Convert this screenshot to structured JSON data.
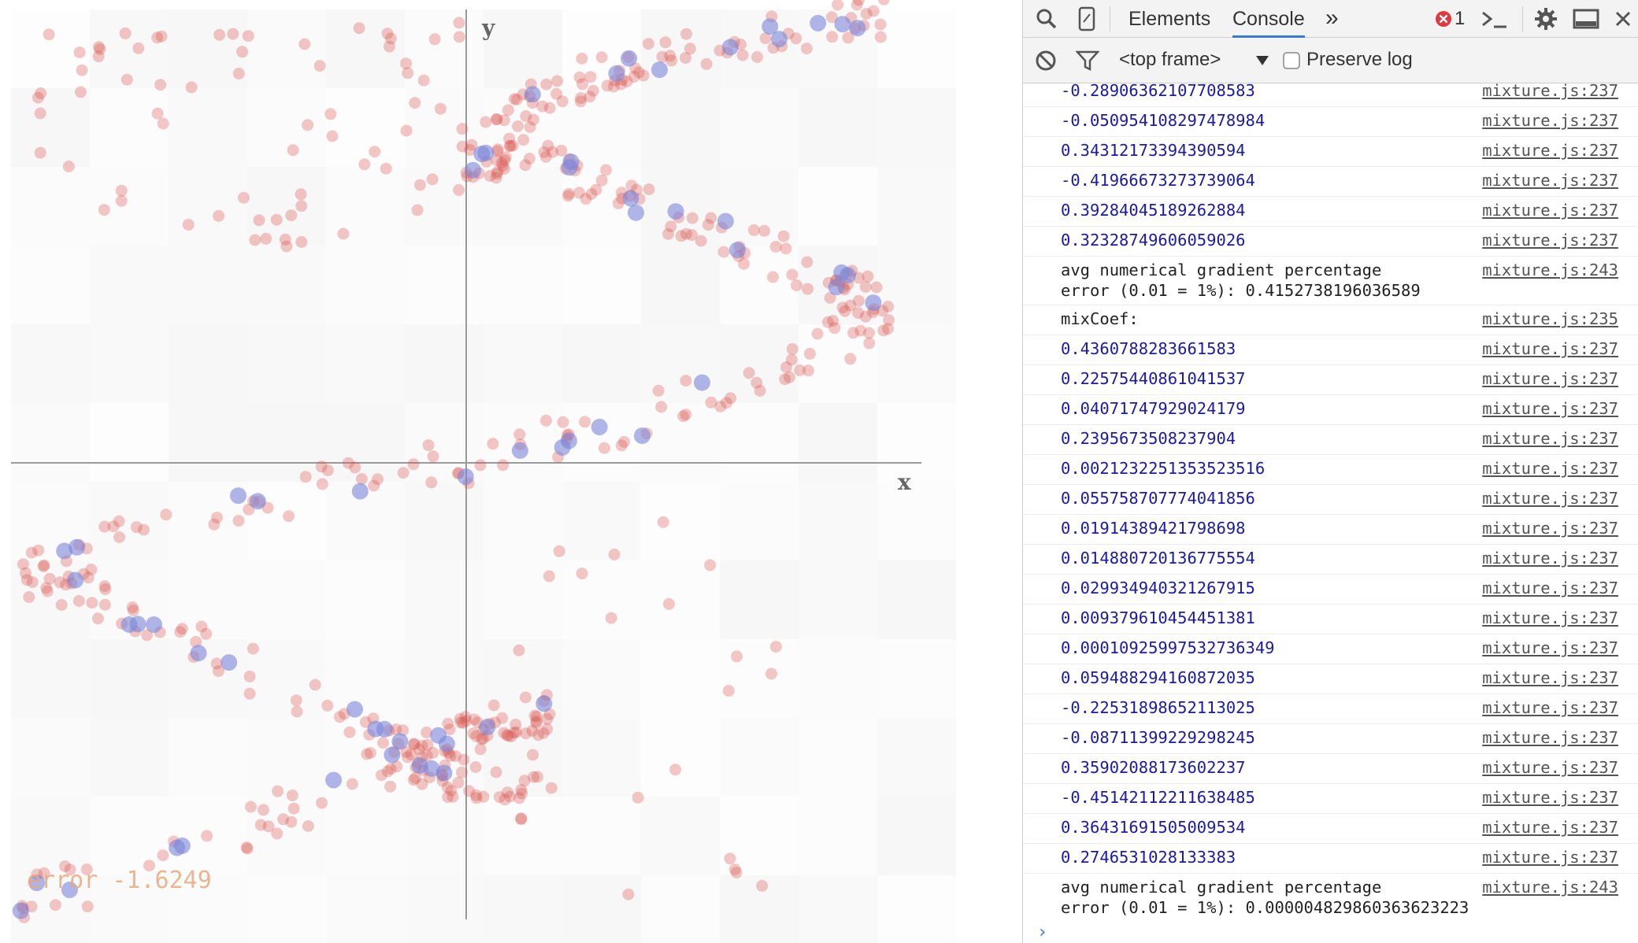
{
  "canvas": {
    "y_axis_label": "y",
    "x_axis_label": "x",
    "error_label": "error -1.6249",
    "background_tile_color": "#f3f3f3",
    "axis_color": "#999999",
    "red_point_color": "#d9534f",
    "blue_point_color": "#7b86d8",
    "error_text_color": "#e8a87c"
  },
  "devtools": {
    "tabs": {
      "elements": "Elements",
      "console": "Console",
      "more": "»"
    },
    "error_count": "1",
    "toolbar": {
      "context": "<top frame>",
      "preserve_log": "Preserve log"
    },
    "console_rows": [
      {
        "msg": "-0.28906362107708583",
        "src": "mixture.js:237",
        "type": "num"
      },
      {
        "msg": "-0.050954108297478984",
        "src": "mixture.js:237",
        "type": "num"
      },
      {
        "msg": "0.34312173394390594",
        "src": "mixture.js:237",
        "type": "num"
      },
      {
        "msg": "-0.41966673273739064",
        "src": "mixture.js:237",
        "type": "num"
      },
      {
        "msg": "0.39284045189262884",
        "src": "mixture.js:237",
        "type": "num"
      },
      {
        "msg": "0.32328749606059026",
        "src": "mixture.js:237",
        "type": "num"
      },
      {
        "msg": "avg numerical gradient percentage\nerror (0.01 = 1%): 0.4152738196036589",
        "src": "mixture.js:243",
        "type": "text"
      },
      {
        "msg": "mixCoef:",
        "src": "mixture.js:235",
        "type": "text"
      },
      {
        "msg": "0.4360788283661583",
        "src": "mixture.js:237",
        "type": "num"
      },
      {
        "msg": "0.22575440861041537",
        "src": "mixture.js:237",
        "type": "num"
      },
      {
        "msg": "0.04071747929024179",
        "src": "mixture.js:237",
        "type": "num"
      },
      {
        "msg": "0.2395673508237904",
        "src": "mixture.js:237",
        "type": "num"
      },
      {
        "msg": "0.0021232251353523516",
        "src": "mixture.js:237",
        "type": "num"
      },
      {
        "msg": "0.055758707774041856",
        "src": "mixture.js:237",
        "type": "num"
      },
      {
        "msg": "0.01914389421798698",
        "src": "mixture.js:237",
        "type": "num"
      },
      {
        "msg": "0.014880720136775554",
        "src": "mixture.js:237",
        "type": "num"
      },
      {
        "msg": "0.029934940321267915",
        "src": "mixture.js:237",
        "type": "num"
      },
      {
        "msg": "0.009379610454451381",
        "src": "mixture.js:237",
        "type": "num"
      },
      {
        "msg": "0.00010925997532736349",
        "src": "mixture.js:237",
        "type": "num"
      },
      {
        "msg": "0.059488294160872035",
        "src": "mixture.js:237",
        "type": "num"
      },
      {
        "msg": "-0.22531898652113025",
        "src": "mixture.js:237",
        "type": "num"
      },
      {
        "msg": "-0.08711399229298245",
        "src": "mixture.js:237",
        "type": "num"
      },
      {
        "msg": "0.35902088173602237",
        "src": "mixture.js:237",
        "type": "num"
      },
      {
        "msg": "-0.45142112211638485",
        "src": "mixture.js:237",
        "type": "num"
      },
      {
        "msg": "0.36431691505009534",
        "src": "mixture.js:237",
        "type": "num"
      },
      {
        "msg": "0.2746531028133383",
        "src": "mixture.js:237",
        "type": "num"
      },
      {
        "msg": "avg numerical gradient percentage\nerror (0.01 = 1%): 0.000004829860363623223",
        "src": "mixture.js:243",
        "type": "text"
      }
    ],
    "prompt_symbol": "›"
  }
}
